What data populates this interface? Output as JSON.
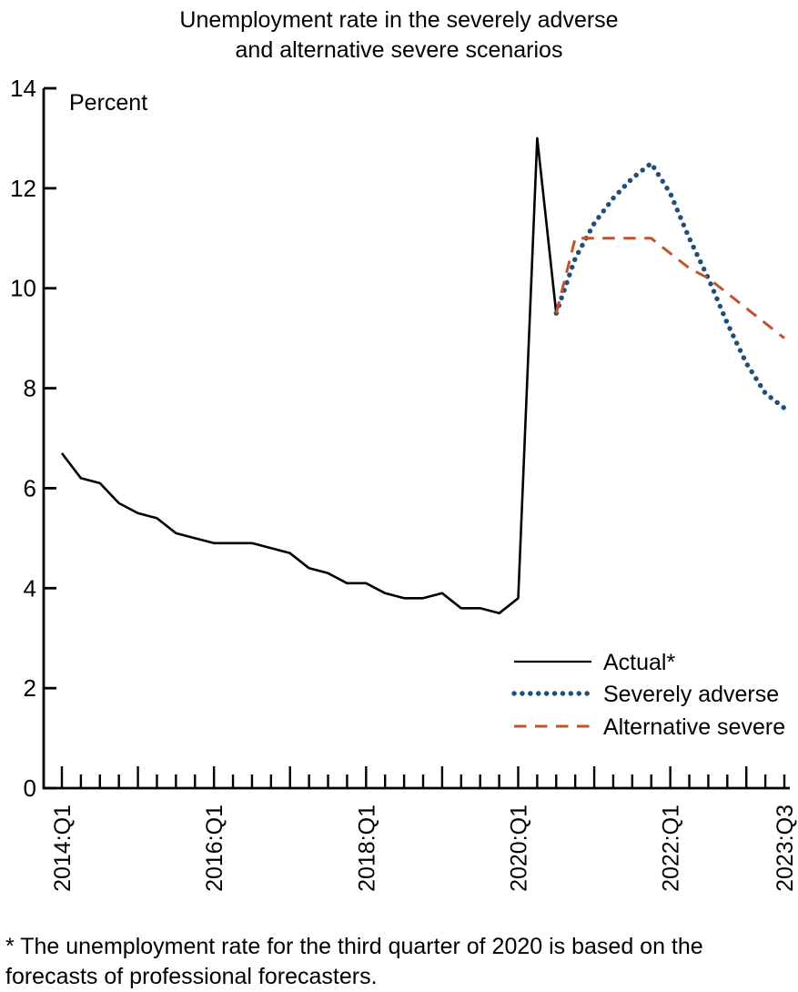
{
  "title": {
    "line1": "Unemployment rate in the severely adverse",
    "line2": "and alternative severe scenarios"
  },
  "axis": {
    "unit_label": "Percent"
  },
  "legend": {
    "items": [
      {
        "label": "Actual*"
      },
      {
        "label": "Severely adverse"
      },
      {
        "label": "Alternative severe"
      }
    ]
  },
  "footnote": {
    "line1": "* The unemployment rate for the third quarter of 2020 is based on the",
    "line2": "forecasts of professional forecasters."
  },
  "chart_data": {
    "type": "line",
    "title": "Unemployment rate in the severely adverse and alternative severe scenarios",
    "xlabel": "",
    "ylabel": "Percent",
    "ylim": [
      0,
      14
    ],
    "y_ticks": [
      0,
      2,
      4,
      6,
      8,
      10,
      12,
      14
    ],
    "grid": false,
    "legend_position": "inside lower right",
    "x_unit": "quarterly, index 0 = 2014:Q1, index 38 = 2023:Q3",
    "x_ticks": [
      {
        "q": 0,
        "label": "2014:Q1"
      },
      {
        "q": 8,
        "label": "2016:Q1"
      },
      {
        "q": 16,
        "label": "2018:Q1"
      },
      {
        "q": 24,
        "label": "2020:Q1"
      },
      {
        "q": 32,
        "label": "2022:Q1"
      },
      {
        "q": 38,
        "label": "2023:Q3"
      }
    ],
    "series": [
      {
        "id": "actual",
        "name": "Actual*",
        "color": "#000000",
        "style": "solid",
        "start_q": 0,
        "start_quarter": "2014:Q1",
        "end_quarter": "2020:Q3",
        "values": [
          6.7,
          6.2,
          6.1,
          5.7,
          5.5,
          5.4,
          5.1,
          5.0,
          4.9,
          4.9,
          4.9,
          4.8,
          4.7,
          4.4,
          4.3,
          4.1,
          4.1,
          3.9,
          3.8,
          3.8,
          3.9,
          3.6,
          3.6,
          3.5,
          3.8,
          13.0,
          9.5
        ]
      },
      {
        "id": "severely-adverse",
        "name": "Severely adverse",
        "color": "#1f4e79",
        "style": "dotted",
        "start_q": 26,
        "start_quarter": "2020:Q3",
        "end_quarter": "2023:Q3",
        "values": [
          9.5,
          10.6,
          11.3,
          11.8,
          12.2,
          12.5,
          11.9,
          11.0,
          10.2,
          9.3,
          8.5,
          7.9,
          7.6
        ]
      },
      {
        "id": "alternative-severe",
        "name": "Alternative severe",
        "color": "#c1532c",
        "style": "dashed",
        "start_q": 26,
        "start_quarter": "2020:Q3",
        "end_quarter": "2023:Q3",
        "values": [
          9.5,
          11.0,
          11.0,
          11.0,
          11.0,
          11.0,
          10.7,
          10.4,
          10.2,
          9.9,
          9.6,
          9.3,
          9.0
        ]
      }
    ]
  }
}
